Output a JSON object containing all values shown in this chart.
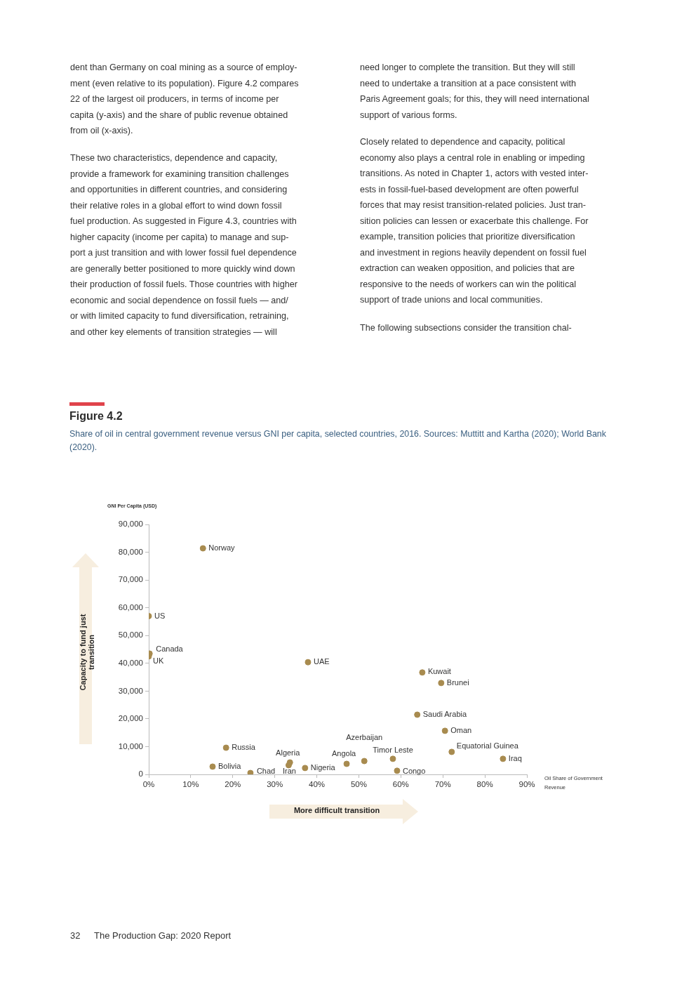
{
  "chart_data": {
    "type": "scatter",
    "title": "Figure 4.2",
    "subtitle": "Share of oil in central government revenue versus GNI per capita, selected countries, 2016. Sources: Muttitt and Kartha (2020); World Bank (2020).",
    "xlabel": "Oil Share of Government Revenue",
    "ylabel": "GNI Per Capita (USD)",
    "x": [
      12.9,
      0,
      0.2,
      0,
      37.9,
      65.1,
      69.6,
      63.9,
      70.5,
      72.1,
      84.3,
      58.1,
      51.3,
      47.1,
      59.1,
      37.2,
      33.6,
      33.3,
      24.2,
      15.2,
      18.4
    ],
    "values": [
      81400,
      57000,
      43500,
      42500,
      40400,
      36700,
      32900,
      21500,
      15700,
      8100,
      5600,
      5600,
      4800,
      3800,
      1300,
      2300,
      4300,
      3300,
      500,
      2800,
      9600
    ],
    "color": "#a88b4f",
    "marker": "circle",
    "grid": false,
    "legend": false,
    "xlim": [
      0,
      90
    ],
    "ylim": [
      0,
      90000
    ],
    "xticks": [
      {
        "value": 0,
        "label": "0%"
      },
      {
        "value": 10,
        "label": "10%"
      },
      {
        "value": 20,
        "label": "20%"
      },
      {
        "value": 30,
        "label": "30%"
      },
      {
        "value": 40,
        "label": "40%"
      },
      {
        "value": 50,
        "label": "50%"
      },
      {
        "value": 60,
        "label": "60%"
      },
      {
        "value": 70,
        "label": "70%"
      },
      {
        "value": 80,
        "label": "80%"
      },
      {
        "value": 90,
        "label": "90%"
      }
    ],
    "yticks": [
      {
        "value": 0,
        "label": "0"
      },
      {
        "value": 10000,
        "label": "10,000"
      },
      {
        "value": 20000,
        "label": "20,000"
      },
      {
        "value": 30000,
        "label": "30,000"
      },
      {
        "value": 40000,
        "label": "40,000"
      },
      {
        "value": 50000,
        "label": "50,000"
      },
      {
        "value": 60000,
        "label": "60,000"
      },
      {
        "value": 70000,
        "label": "70,000"
      },
      {
        "value": 80000,
        "label": "80,000"
      },
      {
        "value": 90000,
        "label": "90,000"
      }
    ],
    "annotations": [
      "dent than Germany on coal mining as a source of employ-\nment (even relative to its population). Figure 4.2 compares\n22 of the largest oil producers, in terms of income per\ncapita (y-axis) and the share of public revenue obtained\nfrom oil (x-axis).",
      "These two characteristics, dependence and capacity,\nprovide a framework for examining transition challenges\nand opportunities in different countries, and considering\ntheir relative roles in a global effort to wind down fossil\nfuel production. As suggested in Figure 4.3, countries with\nhigher capacity (income per capita) to manage and sup-\nport a just transition and with lower fossil fuel dependence\nare generally better positioned to more quickly wind down\ntheir production of fossil fuels. Those countries with higher\neconomic and social dependence on fossil fuels — and/\nor with limited capacity to fund diversification, retraining,\nand other key elements of transition strategies — will",
      "need longer to complete the transition. But they will still\nneed to undertake a transition at a pace consistent with\nParis Agreement goals; for this, they will need international\nsupport of various forms.",
      "Closely related to dependence and capacity, political\neconomy also plays a central role in enabling or impeding\ntransitions. As noted in Chapter 1, actors with vested inter-\nests in fossil-fuel-based development are often powerful\nforces that may resist transition-related policies. Just tran-\nsition policies can lessen or exacerbate this challenge. For\nexample, transition policies that prioritize diversification\nand investment in regions heavily dependent on fossil fuel\nextraction can weaken opposition, and policies that are\nresponsive to the needs of workers can win the political\nsupport of trade unions and local communities.",
      "The following subsections consider the transition chal-",
      "Capacity to fund just transition",
      "More difficult transition",
      "32",
      "The Production Gap: 2020 Report",
      {
        "text": "Norway",
        "x": 12.9,
        "y": 81400
      },
      {
        "text": "US",
        "x": 0,
        "y": 57000
      },
      {
        "text": "Canada",
        "x": 0.2,
        "y": 43500
      },
      {
        "text": "UK",
        "x": 0,
        "y": 42500
      },
      {
        "text": "UAE",
        "x": 37.9,
        "y": 40400
      },
      {
        "text": "Kuwait",
        "x": 65.1,
        "y": 36700
      },
      {
        "text": "Brunei",
        "x": 69.6,
        "y": 32900
      },
      {
        "text": "Saudi Arabia",
        "x": 63.9,
        "y": 21500
      },
      {
        "text": "Oman",
        "x": 70.5,
        "y": 15700
      },
      {
        "text": "Equatorial Guinea",
        "x": 72.1,
        "y": 8100
      },
      {
        "text": "Iraq",
        "x": 84.3,
        "y": 5600
      },
      {
        "text": "Timor Leste",
        "x": 58.1,
        "y": 5600
      },
      {
        "text": "Azerbaijan",
        "x": 51.3,
        "y": 4800
      },
      {
        "text": "Angola",
        "x": 47.1,
        "y": 3800
      },
      {
        "text": "Congo",
        "x": 59.1,
        "y": 1300
      },
      {
        "text": "Nigeria",
        "x": 37.2,
        "y": 2300
      },
      {
        "text": "Algeria",
        "x": 33.6,
        "y": 4300
      },
      {
        "text": "Iran",
        "x": 33.3,
        "y": 3300
      },
      {
        "text": "Chad",
        "x": 24.2,
        "y": 500
      },
      {
        "text": "Bolivia",
        "x": 15.2,
        "y": 2800
      },
      {
        "text": "Russia",
        "x": 18.4,
        "y": 9600
      }
    ]
  }
}
